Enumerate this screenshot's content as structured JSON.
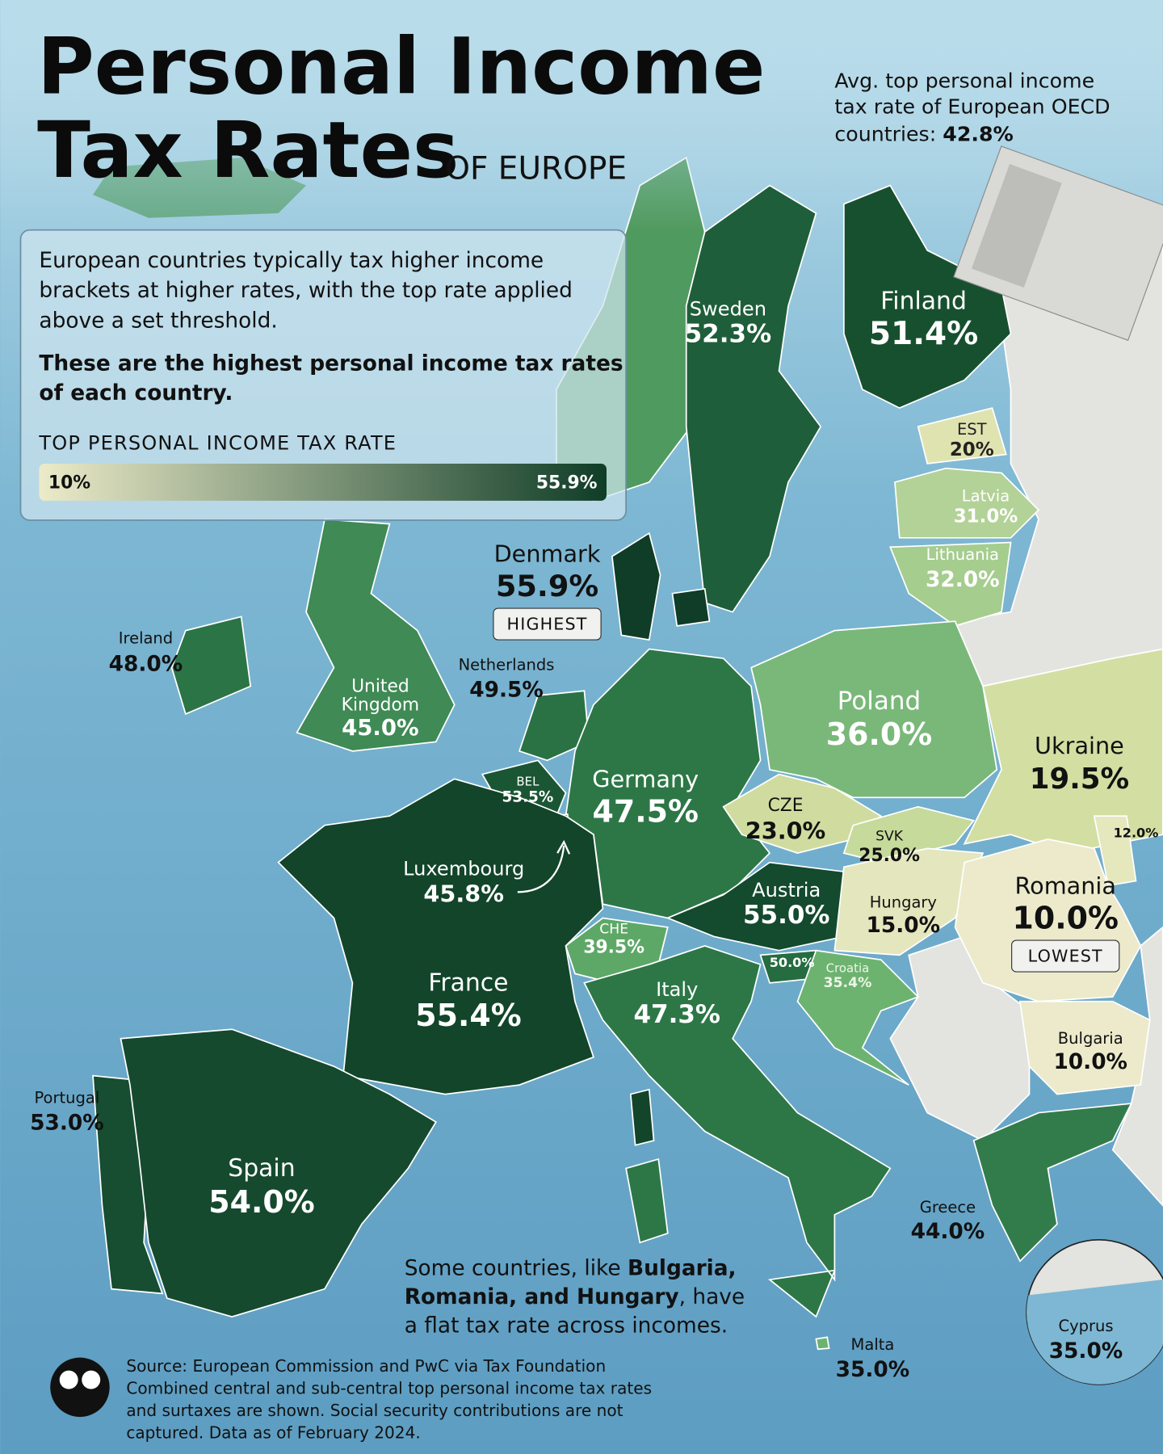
{
  "header": {
    "title_lines": [
      "Personal Income",
      "Tax Rates"
    ],
    "subtitle": "OF EUROPE",
    "average_note": {
      "lines": [
        "Avg. top personal income",
        "tax rate of European OECD",
        "countries:"
      ],
      "value": "42.8%"
    }
  },
  "intro": {
    "lines": [
      "European countries typically tax higher income",
      "brackets at higher rates, with the top rate applied",
      "above a set threshold."
    ],
    "emphasis_lines": [
      "These are the highest personal income tax rates",
      "of each country."
    ]
  },
  "legend": {
    "title": "TOP PERSONAL INCOME TAX RATE",
    "min_label": "10%",
    "max_label": "55.9%",
    "colors": [
      "#ecebc9",
      "#0f3d27"
    ]
  },
  "countries": [
    {
      "name": "Sweden",
      "rate": "52.3%",
      "color": "#1f5e3a"
    },
    {
      "name": "Finland",
      "rate": "51.4%",
      "color": "#17502f"
    },
    {
      "name": "EST",
      "rate": "20%",
      "color": "#dfe3b0"
    },
    {
      "name": "Latvia",
      "rate": "31.0%",
      "color": "#b3d297"
    },
    {
      "name": "Lithuania",
      "rate": "32.0%",
      "color": "#a5cd8e"
    },
    {
      "name": "Denmark",
      "rate": "55.9%",
      "color": "#0f3d27",
      "badge": "HIGHEST"
    },
    {
      "name": "Ireland",
      "rate": "48.0%",
      "color": "#2b7446"
    },
    {
      "name": "United Kingdom",
      "rate": "45.0%",
      "color": "#3f8a55"
    },
    {
      "name": "Netherlands",
      "rate": "49.5%",
      "color": "#2a7244"
    },
    {
      "name": "BEL",
      "rate": "53.5%",
      "color": "#1b5634"
    },
    {
      "name": "Germany",
      "rate": "47.5%",
      "color": "#2d7747"
    },
    {
      "name": "Poland",
      "rate": "36.0%",
      "color": "#79b879"
    },
    {
      "name": "Ukraine",
      "rate": "19.5%",
      "color": "#d3dea2"
    },
    {
      "name": "CZE",
      "rate": "23.0%",
      "color": "#d0dc9f"
    },
    {
      "name": "SVK",
      "rate": "25.0%",
      "color": "#c6da9b"
    },
    {
      "name": "Austria",
      "rate": "55.0%",
      "color": "#144a2e"
    },
    {
      "name": "Hungary",
      "rate": "15.0%",
      "color": "#e4e6bd"
    },
    {
      "name": "Romania",
      "rate": "10.0%",
      "color": "#eceacb",
      "badge": "LOWEST"
    },
    {
      "name": null,
      "rate": "12.0%",
      "color": "#e5e7bd"
    },
    {
      "name": "Luxembourg",
      "rate": "45.8%",
      "color": "#2f7a48"
    },
    {
      "name": "CHE",
      "rate": "39.5%",
      "color": "#5ea867"
    },
    {
      "name": null,
      "rate": "50.0%",
      "color": "#256c40"
    },
    {
      "name": "Croatia",
      "rate": "35.4%",
      "color": "#6db370"
    },
    {
      "name": "France",
      "rate": "55.4%",
      "color": "#124529"
    },
    {
      "name": "Italy",
      "rate": "47.3%",
      "color": "#2d7747"
    },
    {
      "name": "Bulgaria",
      "rate": "10.0%",
      "color": "#eceacb"
    },
    {
      "name": "Portugal",
      "rate": "53.0%",
      "color": "#174d30"
    },
    {
      "name": "Spain",
      "rate": "54.0%",
      "color": "#154a2e"
    },
    {
      "name": "Greece",
      "rate": "44.0%",
      "color": "#327c4b"
    },
    {
      "name": "Malta",
      "rate": "35.0%",
      "color": "#6db370"
    },
    {
      "name": "Cyprus",
      "rate": "35.0%",
      "color": "#6db370"
    }
  ],
  "flat_tax_note": [
    [
      {
        "text": "Some countries, like "
      },
      {
        "text": "Bulgaria,",
        "bold": true
      }
    ],
    [
      {
        "text": "Romania, and Hungary",
        "bold": true
      },
      {
        "text": ", have"
      }
    ],
    [
      {
        "text": "a flat tax rate across incomes."
      }
    ]
  ],
  "source_lines": [
    "Source: European Commission and PwC via Tax Foundation",
    "Combined central and sub-central top personal income tax rates",
    "and surtaxes are shown. Social security contributions are not",
    "captured. Data as of February 2024."
  ]
}
